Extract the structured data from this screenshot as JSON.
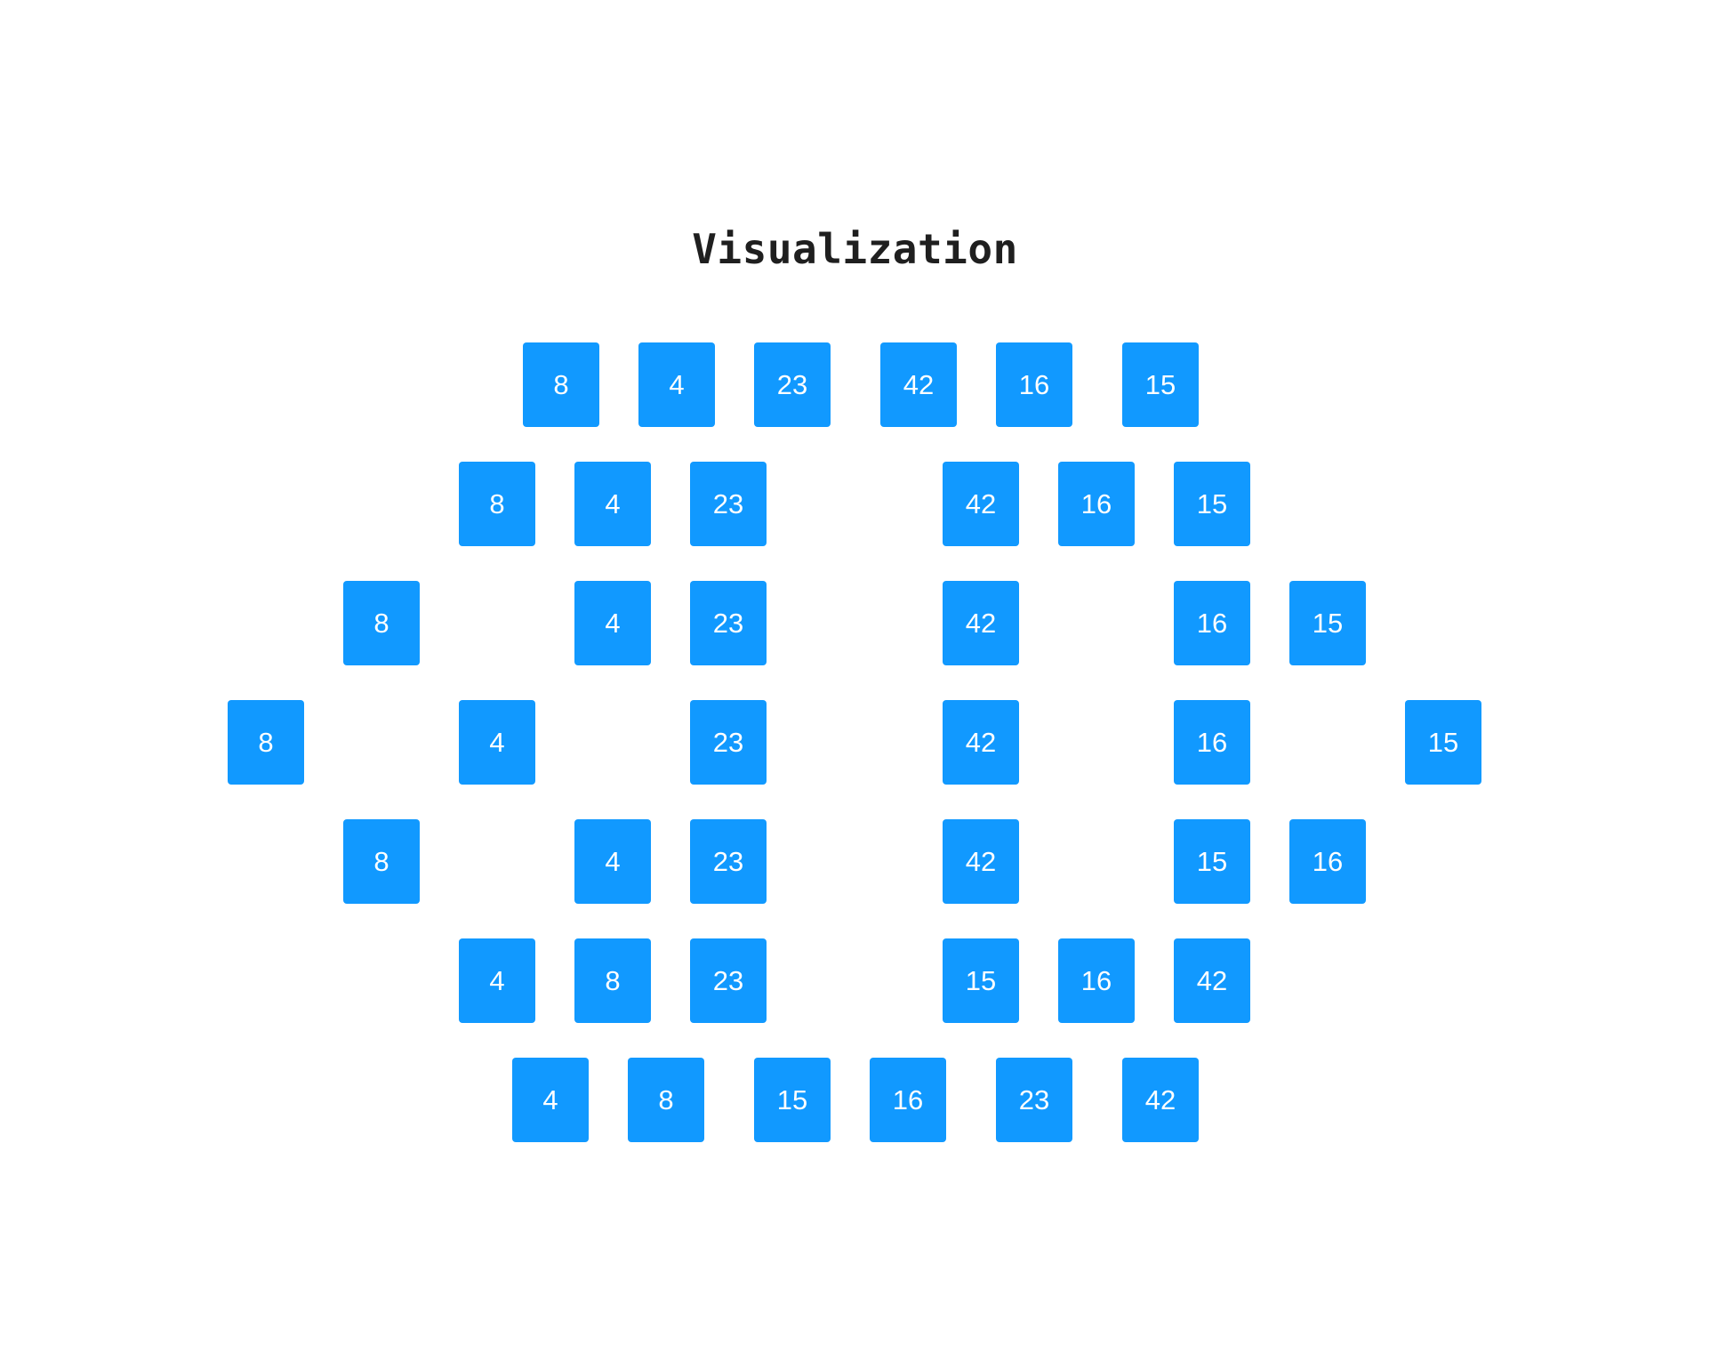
{
  "title": "Visualization",
  "colors": {
    "cell_fill": "#1199ff",
    "cell_text": "#ffffff",
    "title_text": "#1f1f1f",
    "background": "#ffffff"
  },
  "rows": [
    [
      "8",
      "4",
      "23",
      "42",
      "16",
      "15"
    ],
    [
      "8",
      "4",
      "23",
      "42",
      "16",
      "15"
    ],
    [
      "8",
      "4",
      "23",
      "42",
      "16",
      "15"
    ],
    [
      "8",
      "4",
      "23",
      "42",
      "16",
      "15"
    ],
    [
      "8",
      "4",
      "23",
      "42",
      "15",
      "16"
    ],
    [
      "4",
      "8",
      "23",
      "15",
      "16",
      "42"
    ],
    [
      "4",
      "8",
      "15",
      "16",
      "23",
      "42"
    ]
  ]
}
